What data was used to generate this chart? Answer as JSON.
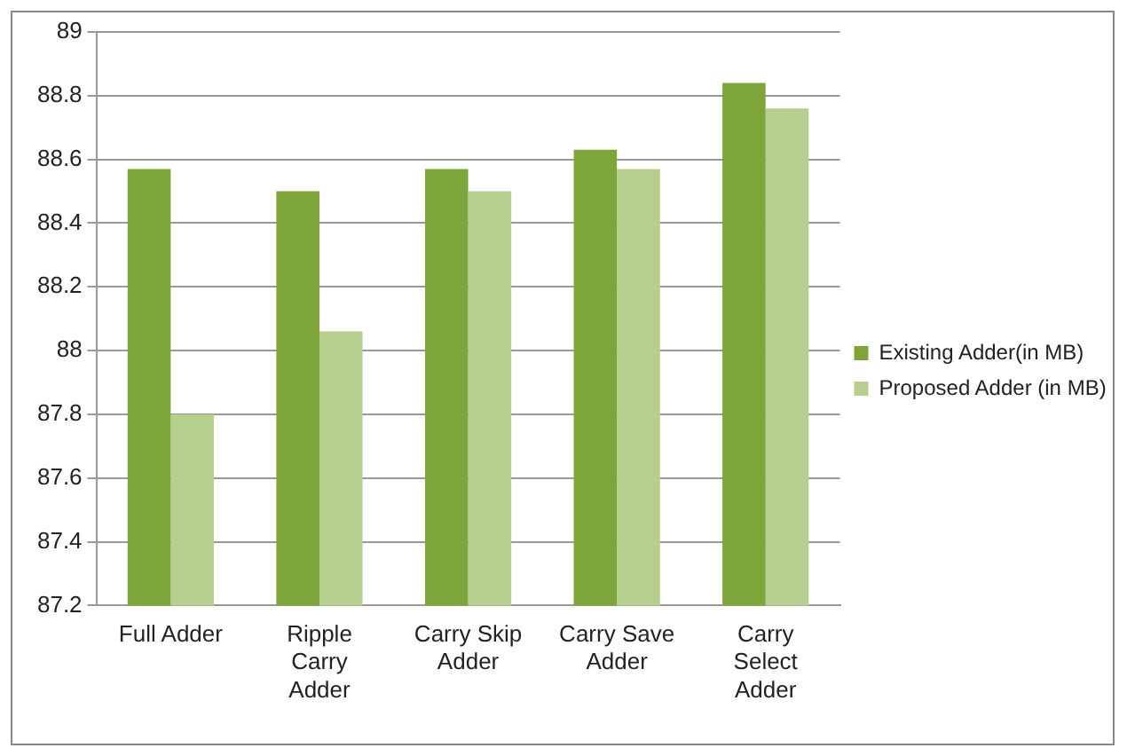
{
  "chart_data": {
    "type": "bar",
    "categories": [
      "Full Adder",
      "Ripple Carry Adder",
      "Carry Skip Adder",
      "Carry Save Adder",
      "Carry Select Adder"
    ],
    "series": [
      {
        "name": "Existing Adder(in MB)",
        "color": "#7ea53a",
        "values": [
          88.57,
          88.5,
          88.57,
          88.63,
          88.84
        ]
      },
      {
        "name": "Proposed Adder (in MB)",
        "color": "#b5d08e",
        "values": [
          87.8,
          88.06,
          88.5,
          88.57,
          88.76
        ]
      }
    ],
    "ylim": [
      87.2,
      89
    ],
    "yticks": [
      87.2,
      87.4,
      87.6,
      87.8,
      88,
      88.2,
      88.4,
      88.6,
      88.8,
      89
    ],
    "grid": "y",
    "legend": "right"
  }
}
